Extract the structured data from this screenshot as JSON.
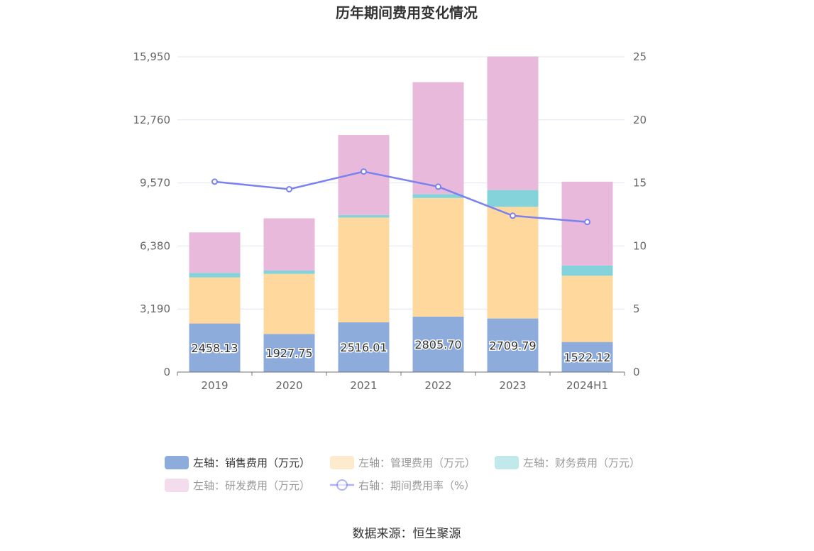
{
  "title": "历年期间费用变化情况",
  "source": "数据来源：恒生聚源",
  "chart_data": {
    "type": "bar",
    "stacked": true,
    "categories": [
      "2019",
      "2020",
      "2021",
      "2022",
      "2023",
      "2024H1"
    ],
    "left_axis": {
      "ticks": [
        "0",
        "3,190",
        "6,380",
        "9,570",
        "12,760",
        "15,950"
      ],
      "ylim": [
        0,
        15950
      ]
    },
    "right_axis": {
      "ticks": [
        "0",
        "5",
        "10",
        "15",
        "20",
        "25"
      ],
      "ylim": [
        0,
        25
      ]
    },
    "grid": true,
    "legend_position": "bottom",
    "series": [
      {
        "name": "左轴：销售费用（万元）",
        "type": "bar",
        "axis": "left",
        "color": "#8eacdb",
        "values": [
          2458.13,
          1927.75,
          2516.01,
          2805.7,
          2709.79,
          1522.12
        ],
        "labels": [
          "2458.13",
          "1927.75",
          "2516.01",
          "2805.70",
          "2709.79",
          "1522.12"
        ]
      },
      {
        "name": "左轴：管理费用（万元）",
        "type": "bar",
        "axis": "left",
        "color": "#fed89c",
        "values": [
          2330,
          3040,
          5300,
          6000,
          5650,
          3350
        ]
      },
      {
        "name": "左轴：财务费用（万元）",
        "type": "bar",
        "axis": "left",
        "color": "#84d3da",
        "values": [
          230,
          170,
          130,
          200,
          850,
          520
        ]
      },
      {
        "name": "左轴：研发费用（万元）",
        "type": "bar",
        "axis": "left",
        "color": "#e8b9da",
        "values": [
          2050,
          2640,
          4050,
          5660,
          6760,
          4240
        ]
      },
      {
        "name": "右轴：期间费用率（%）",
        "type": "line",
        "axis": "right",
        "color": "#7b82f0",
        "values": [
          15.1,
          14.5,
          15.9,
          14.7,
          12.4,
          11.9
        ]
      }
    ]
  }
}
